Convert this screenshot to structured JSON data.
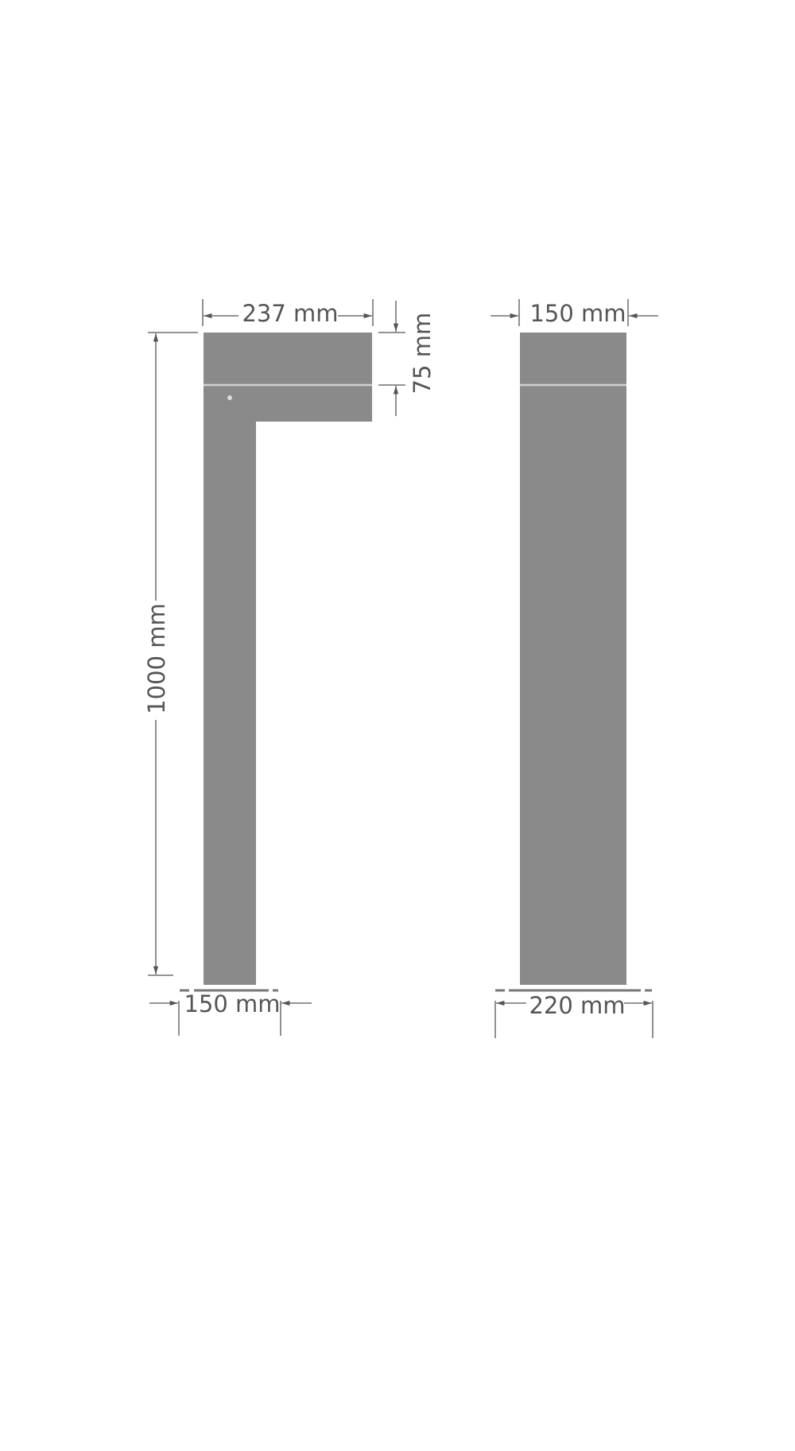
{
  "side_view": {
    "head_width": "237 mm",
    "head_height": "75 mm",
    "total_height": "1000 mm",
    "base_width": "150 mm"
  },
  "front_view": {
    "top_width": "150 mm",
    "base_width": "220 mm"
  },
  "colors": {
    "body": "#8a8a8a",
    "dimension": "#555555"
  }
}
